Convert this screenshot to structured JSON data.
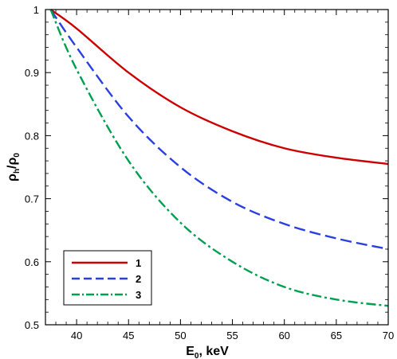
{
  "chart_data": {
    "type": "line",
    "xlabel": "E",
    "xlabel_sub": "0",
    "xlabel_unit": ", keV",
    "ylabel": "ρ",
    "ylabel_sub": "h",
    "ylabel_mid": "/ρ",
    "ylabel_sub2": "0",
    "xlim": [
      37,
      70
    ],
    "ylim": [
      0.5,
      1.0
    ],
    "xticks": [
      "40",
      "45",
      "50",
      "55",
      "60",
      "65",
      "70"
    ],
    "yticks": [
      "0.5",
      "0.6",
      "0.7",
      "0.8",
      "0.9",
      "1"
    ],
    "legend_position": "bottom-left",
    "series": [
      {
        "name": "1",
        "color": "#cc0000",
        "dash": "solid",
        "x": [
          37.5,
          40,
          45,
          50,
          55,
          60,
          65,
          70
        ],
        "y": [
          1.0,
          0.97,
          0.9,
          0.845,
          0.807,
          0.78,
          0.765,
          0.755
        ]
      },
      {
        "name": "2",
        "color": "#2a3fe0",
        "dash": "dashed",
        "x": [
          37.5,
          40,
          45,
          50,
          55,
          60,
          65,
          70
        ],
        "y": [
          1.0,
          0.94,
          0.83,
          0.75,
          0.695,
          0.66,
          0.637,
          0.62
        ]
      },
      {
        "name": "3",
        "color": "#00a050",
        "dash": "dashdot",
        "x": [
          37.5,
          40,
          45,
          50,
          55,
          60,
          65,
          70
        ],
        "y": [
          1.0,
          0.905,
          0.76,
          0.662,
          0.6,
          0.56,
          0.54,
          0.53
        ]
      }
    ]
  }
}
